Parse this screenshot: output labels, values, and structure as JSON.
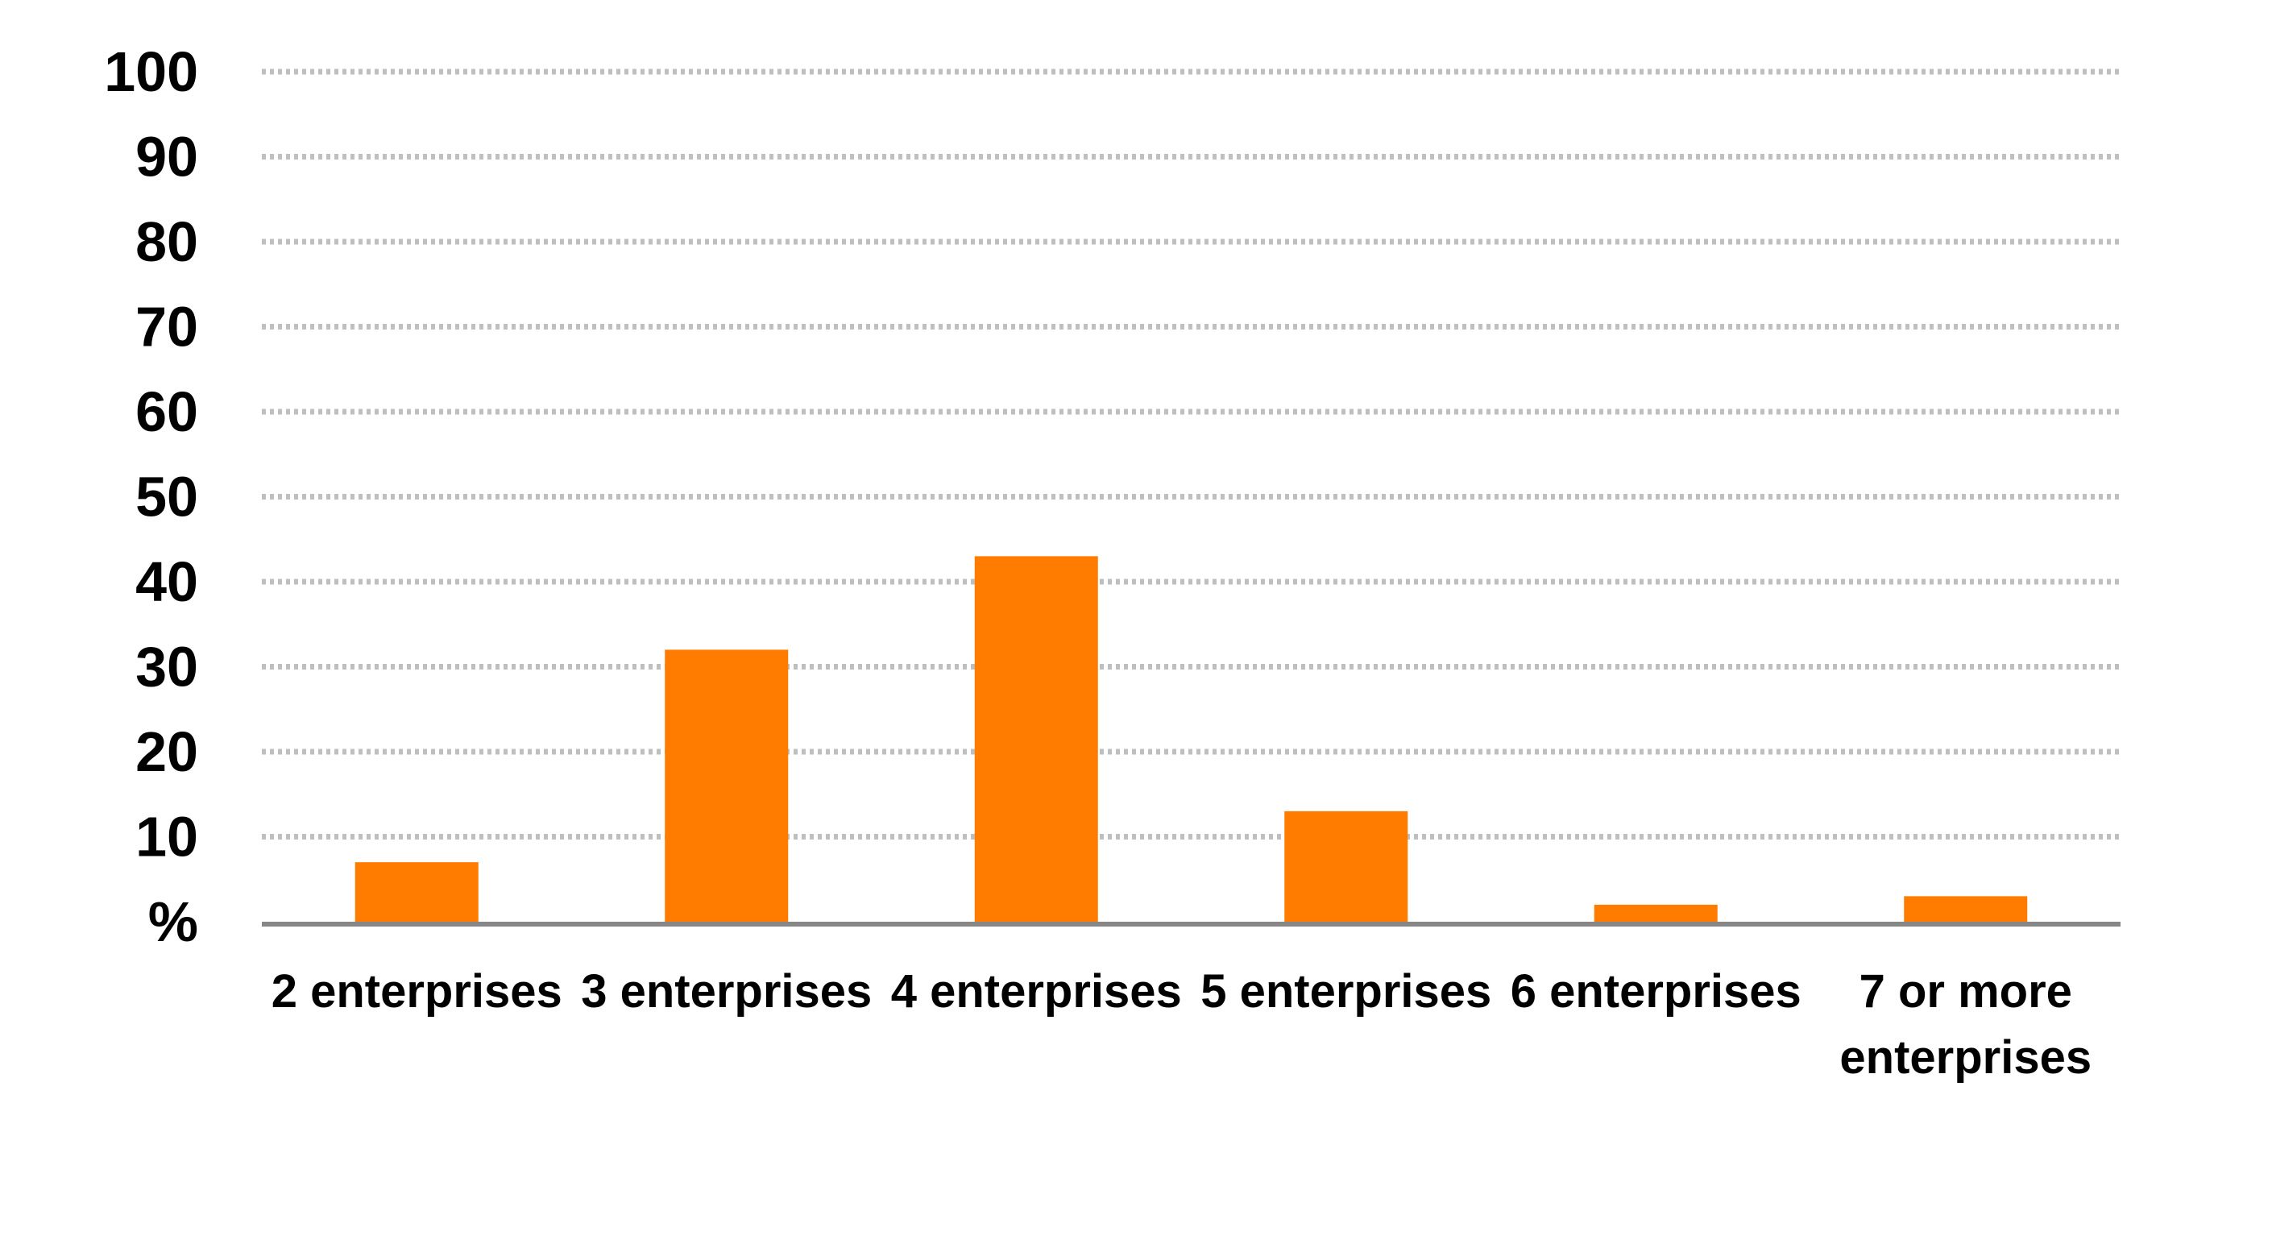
{
  "chart_data": {
    "type": "bar",
    "categories": [
      "2 enterprises",
      "3 enterprises",
      "4 enterprises",
      "5 enterprises",
      "6 enterprises",
      "7 or more enterprises"
    ],
    "category_lines": [
      [
        "2 enterprises"
      ],
      [
        "3 enterprises"
      ],
      [
        "4 enterprises"
      ],
      [
        "5 enterprises"
      ],
      [
        "6 enterprises"
      ],
      [
        "7 or more",
        "enterprises"
      ]
    ],
    "values": [
      7,
      32,
      43,
      13,
      2,
      3
    ],
    "title": "",
    "xlabel": "",
    "ylabel": "%",
    "ylim": [
      0,
      100
    ],
    "yticks": [
      "100",
      "90",
      "80",
      "70",
      "60",
      "50",
      "40",
      "30",
      "20",
      "10"
    ],
    "ytick_values": [
      100,
      90,
      80,
      70,
      60,
      50,
      40,
      30,
      20,
      10
    ],
    "grid": true,
    "grid_style": "dotted",
    "legend": "none",
    "colors": {
      "bar": "#FF7C00",
      "grid": "#BFBFBF",
      "axis": "#878787"
    }
  }
}
